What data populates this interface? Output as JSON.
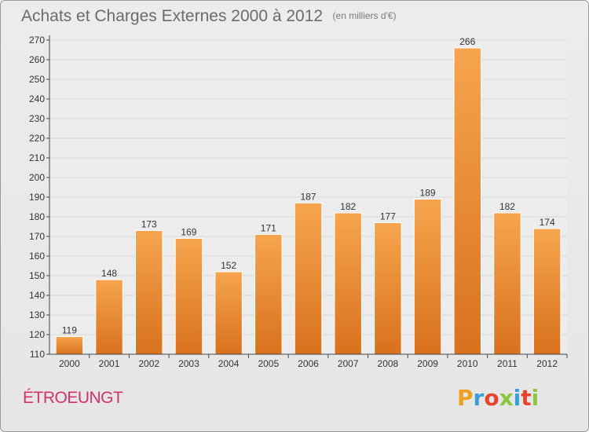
{
  "header": {
    "title": "Achats et Charges Externes 2000 à 2012",
    "subtitle": "(en milliers d'€)"
  },
  "commune": "ÉTROEUNGT",
  "logo": {
    "letters": [
      "P",
      "r",
      "o",
      "x",
      "i",
      "t",
      "i"
    ],
    "colors": [
      "#f0a020",
      "#3a9fd8",
      "#e8432e",
      "#8cc63e",
      "#3a9fd8",
      "#e8432e",
      "#8cc63e"
    ]
  },
  "colors": {
    "bar_light": "#f6a54e",
    "bar_dark": "#d9711d",
    "axis": "#444444",
    "grid": "#d8d8d8"
  },
  "chart_data": {
    "type": "bar",
    "categories": [
      "2000",
      "2001",
      "2002",
      "2003",
      "2004",
      "2005",
      "2006",
      "2007",
      "2008",
      "2009",
      "2010",
      "2011",
      "2012"
    ],
    "values": [
      119,
      148,
      173,
      169,
      152,
      171,
      187,
      182,
      177,
      189,
      266,
      182,
      174
    ],
    "title": "Achats et Charges Externes 2000 à 2012",
    "xlabel": "",
    "ylabel": "",
    "ylim": [
      110,
      270
    ],
    "yticks": [
      110,
      120,
      130,
      140,
      150,
      160,
      170,
      180,
      190,
      200,
      210,
      220,
      230,
      240,
      250,
      260,
      270
    ],
    "grid": true,
    "data_labels": true
  }
}
